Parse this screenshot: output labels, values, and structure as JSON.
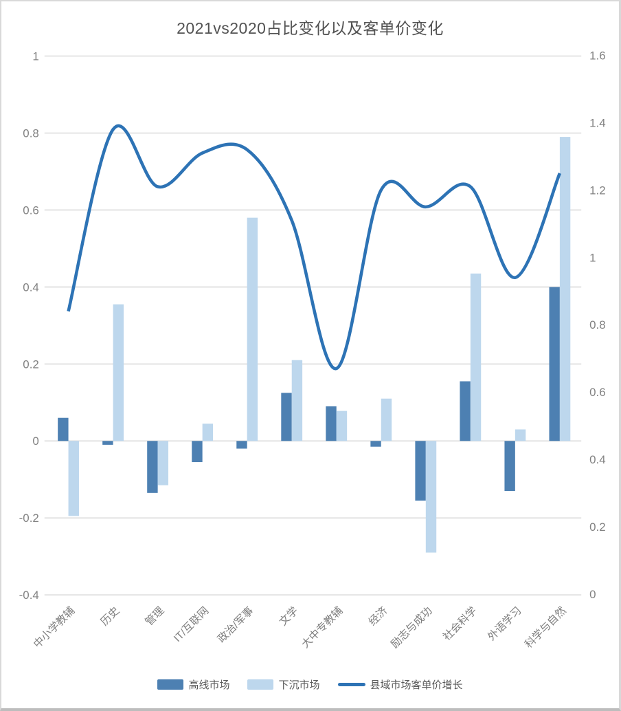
{
  "window": {
    "background": "#ffffff",
    "border_color": "#d9d9d9",
    "bottom_border_color": "#bdbdbd"
  },
  "chart_data": {
    "type": "bar",
    "title": "2021vs2020占比变化以及客单价变化",
    "categories": [
      "中小学教辅",
      "历史",
      "管理",
      "IT/互联网",
      "政治/军事",
      "文学",
      "大中专教辅",
      "经济",
      "励志与成功",
      "社会科学",
      "外语学习",
      "科学与自然"
    ],
    "series": [
      {
        "name": "高线市场",
        "type": "bar",
        "axis": "left",
        "color": "#4d80b2",
        "values": [
          0.06,
          -0.01,
          -0.135,
          -0.055,
          -0.02,
          0.125,
          0.09,
          -0.015,
          -0.155,
          0.155,
          -0.13,
          0.4
        ]
      },
      {
        "name": "下沉市场",
        "type": "bar",
        "axis": "left",
        "color": "#bdd7ed",
        "values": [
          -0.195,
          0.355,
          -0.115,
          0.045,
          0.58,
          0.21,
          0.078,
          0.11,
          -0.29,
          0.435,
          0.03,
          0.79
        ]
      },
      {
        "name": "县域市场客单价增长",
        "type": "line",
        "axis": "right",
        "color": "#2d73b5",
        "values": [
          0.84,
          1.38,
          1.21,
          1.31,
          1.32,
          1.11,
          0.67,
          1.2,
          1.15,
          1.21,
          0.94,
          1.25
        ]
      }
    ],
    "left_axis": {
      "min": -0.4,
      "max": 1,
      "ticks": [
        1,
        0.8,
        0.6,
        0.4,
        0.2,
        0,
        -0.2,
        -0.4
      ]
    },
    "right_axis": {
      "min": 0,
      "max": 1.6,
      "ticks": [
        1.6,
        1.4,
        1.2,
        1,
        0.8,
        0.6,
        0.4,
        0.2,
        0
      ]
    },
    "grid": true,
    "legend_position": "bottom",
    "colors": {
      "grid_line": "#d9d9d9",
      "tick_text": "#828282",
      "category_text": "#7f7f7f",
      "title_text": "#525252",
      "legend_text": "#595959"
    }
  }
}
